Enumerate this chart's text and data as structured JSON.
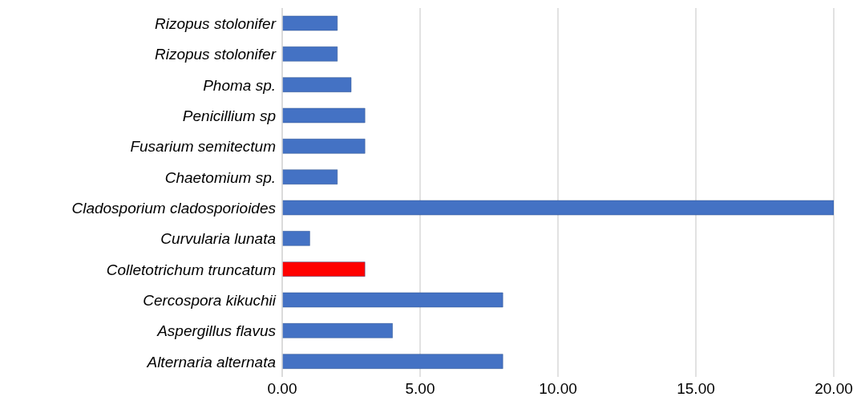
{
  "chart_data": {
    "type": "bar",
    "orientation": "horizontal",
    "categories": [
      "Rizopus stolonifer",
      "Rizopus stolonifer",
      "Phoma sp.",
      "Penicillium sp",
      "Fusarium semitectum",
      "Chaetomium sp.",
      "Cladosporium cladosporioides",
      "Curvularia lunata",
      "Colletotrichum truncatum",
      "Cercospora kikuchii",
      "Aspergillus flavus",
      "Alternaria alternata"
    ],
    "values": [
      2,
      2,
      2.5,
      3,
      3,
      2,
      20,
      1,
      3,
      8,
      4,
      8
    ],
    "colors": [
      "#4472c4",
      "#4472c4",
      "#4472c4",
      "#4472c4",
      "#4472c4",
      "#4472c4",
      "#4472c4",
      "#4472c4",
      "#ff0000",
      "#4472c4",
      "#4472c4",
      "#4472c4"
    ],
    "xlim": [
      0,
      20
    ],
    "xticks": [
      {
        "value": 0,
        "label": "0.00"
      },
      {
        "value": 5,
        "label": "5.00"
      },
      {
        "value": 10,
        "label": "10.00"
      },
      {
        "value": 15,
        "label": "15.00"
      },
      {
        "value": 20,
        "label": "20.00"
      }
    ],
    "grid": "x"
  }
}
